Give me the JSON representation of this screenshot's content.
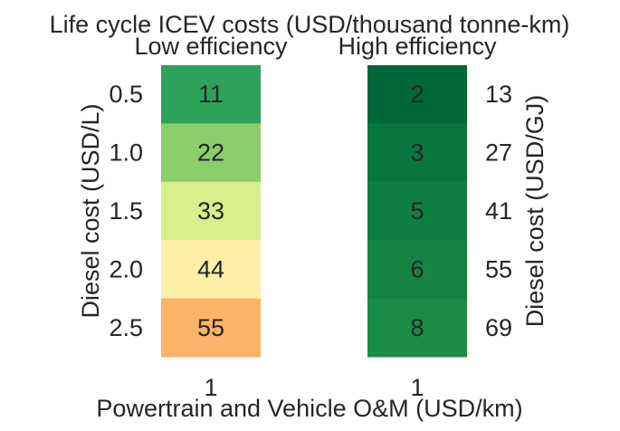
{
  "chart_data": {
    "type": "heatmap",
    "title": "Life cycle ICEV costs (USD/thousand tonne-km)",
    "xlabel": "Powertrain and Vehicle O&M (USD/km)",
    "ylabel_left": "Diesel cost (USD/L)",
    "ylabel_right": "Diesel cost (USD/GJ)",
    "y_ticks_left": [
      "0.5",
      "1.0",
      "1.5",
      "2.0",
      "2.5"
    ],
    "y_ticks_right": [
      "13",
      "27",
      "41",
      "55",
      "69"
    ],
    "panels": [
      {
        "title": "Low efficiency",
        "x_ticks": [
          "1"
        ],
        "values": [
          11,
          22,
          33,
          44,
          55
        ],
        "colors": [
          "#2ca25a",
          "#8ccf6a",
          "#d9ef8b",
          "#fef0a8",
          "#fdb469"
        ]
      },
      {
        "title": "High efficiency",
        "x_ticks": [
          "1"
        ],
        "values": [
          2,
          3,
          5,
          6,
          8
        ],
        "colors": [
          "#006837",
          "#08773e",
          "#0f7e42",
          "#148343",
          "#198c47"
        ]
      }
    ]
  }
}
